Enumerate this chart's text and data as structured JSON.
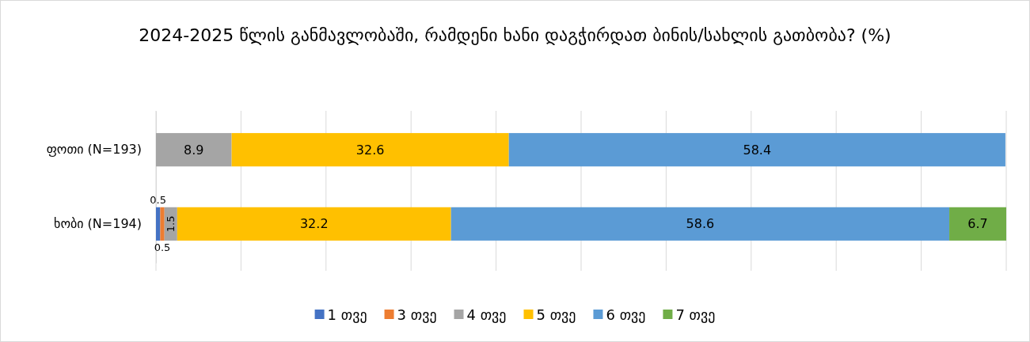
{
  "chart_data": {
    "type": "bar",
    "orientation": "horizontal",
    "stacked": true,
    "title": "2024-2025 წლის განმავლობაში, რამდენი ხანი დაგჭირდათ ბინის/სახლის გათბობა? (%)",
    "categories": [
      "ფოთი (N=193)",
      "ხობი (N=194)"
    ],
    "series": [
      {
        "name": "1 თვე",
        "color": "#4472c4",
        "values": [
          null,
          0.5
        ]
      },
      {
        "name": "3 თვე",
        "color": "#ed7d31",
        "values": [
          null,
          0.5
        ]
      },
      {
        "name": "4 თვე",
        "color": "#a5a5a5",
        "values": [
          8.9,
          1.5
        ]
      },
      {
        "name": "5 თვე",
        "color": "#ffc000",
        "values": [
          32.6,
          32.2
        ]
      },
      {
        "name": "6 თვე",
        "color": "#5b9bd5",
        "values": [
          58.4,
          58.6
        ]
      },
      {
        "name": "7 თვე",
        "color": "#70ad47",
        "values": [
          null,
          6.7
        ]
      }
    ],
    "xlim": [
      0,
      100
    ],
    "xticks": [
      {
        "value": 0,
        "label": null
      },
      {
        "value": 10,
        "label": null
      },
      {
        "value": 20,
        "label": null
      },
      {
        "value": 30,
        "label": null
      },
      {
        "value": 40,
        "label": null
      },
      {
        "value": 50,
        "label": null
      },
      {
        "value": 60,
        "label": null
      },
      {
        "value": 70,
        "label": null
      },
      {
        "value": 80,
        "label": null
      },
      {
        "value": 90,
        "label": null
      },
      {
        "value": 100,
        "label": null
      }
    ],
    "grid": "x",
    "tick_labels": "y",
    "data_labels": true,
    "legend": "bottom"
  }
}
